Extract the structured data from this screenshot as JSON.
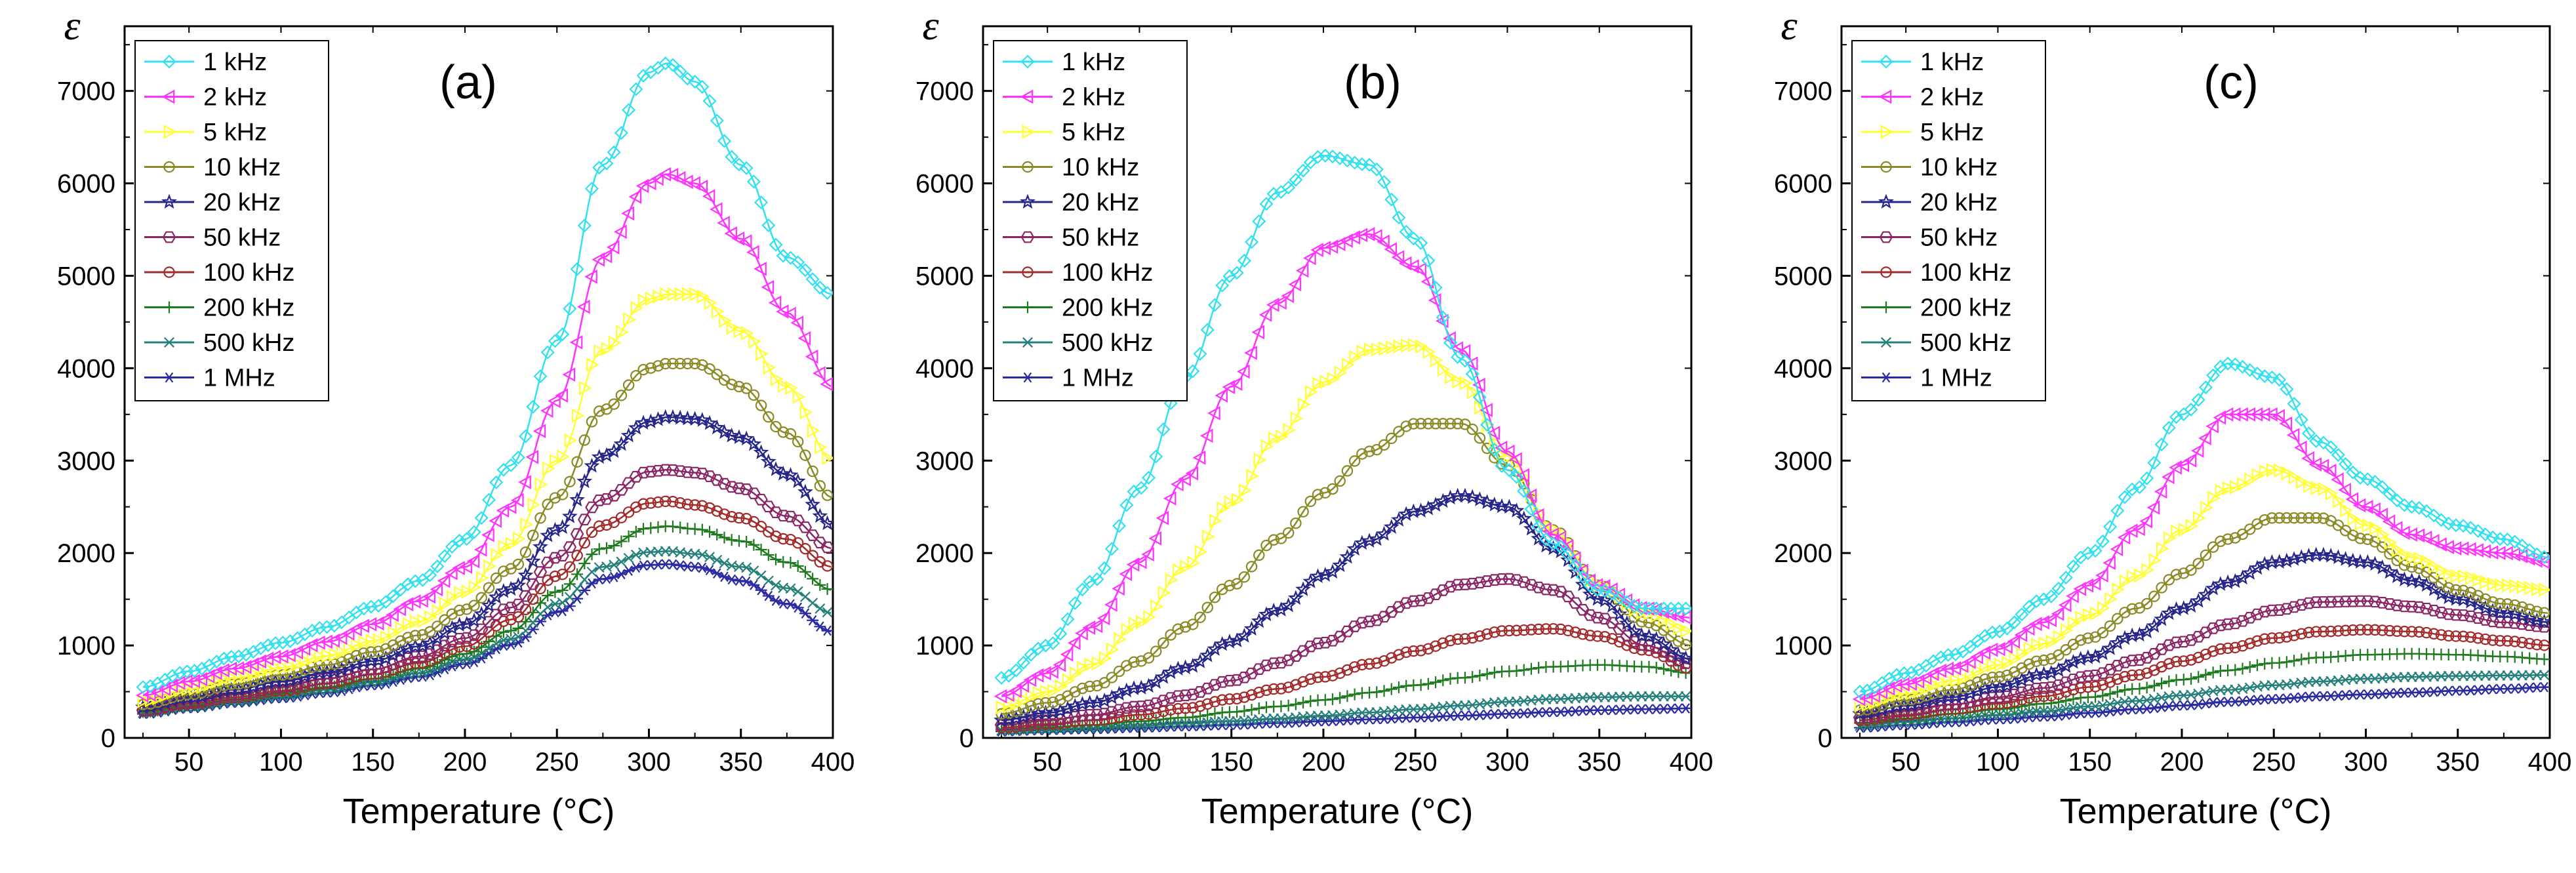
{
  "colors": {
    "1 kHz": "#33e0f0",
    "2 kHz": "#ff33ff",
    "5 kHz": "#ffff33",
    "10 kHz": "#8a8a26",
    "20 kHz": "#26268a",
    "50 kHz": "#8a2666",
    "100 kHz": "#a32a2a",
    "200 kHz": "#1f7a1f",
    "500 kHz": "#26807a",
    "1 MHz": "#2a2aa3"
  },
  "markers": {
    "1 kHz": "diamond",
    "2 kHz": "triangle-left",
    "5 kHz": "triangle-right",
    "10 kHz": "circle",
    "20 kHz": "star",
    "50 kHz": "hexagon",
    "100 kHz": "circle",
    "200 kHz": "plus",
    "500 kHz": "cross",
    "1 MHz": "asterisk"
  },
  "chart_data": [
    {
      "type": "line",
      "panel_label": "(a)",
      "ylabel": "ε",
      "xlabel": "Temperature (°C)",
      "xlim": [
        15,
        400
      ],
      "ylim": [
        0,
        7700
      ],
      "xticks": [
        50,
        100,
        150,
        200,
        250,
        300,
        350,
        400
      ],
      "yticks": [
        0,
        1000,
        2000,
        3000,
        4000,
        5000,
        6000,
        7000
      ],
      "legend": "top-left",
      "x": [
        25,
        50,
        75,
        100,
        125,
        150,
        175,
        200,
        225,
        250,
        275,
        300,
        310,
        325,
        350,
        375,
        400
      ],
      "series": [
        {
          "name": "1 kHz",
          "values": [
            550,
            720,
            880,
            1030,
            1200,
            1420,
            1700,
            2150,
            2950,
            4300,
            6200,
            7200,
            7300,
            7100,
            6200,
            5200,
            4800
          ]
        },
        {
          "name": "2 kHz",
          "values": [
            460,
            610,
            750,
            880,
            1040,
            1230,
            1480,
            1850,
            2500,
            3650,
            5200,
            6000,
            6100,
            6000,
            5400,
            4600,
            3800
          ]
        },
        {
          "name": "5 kHz",
          "values": [
            400,
            530,
            650,
            760,
            890,
            1050,
            1260,
            1580,
            2100,
            3000,
            4200,
            4750,
            4800,
            4800,
            4400,
            3800,
            3000
          ]
        },
        {
          "name": "10 kHz",
          "values": [
            360,
            470,
            580,
            680,
            790,
            930,
            1110,
            1390,
            1830,
            2600,
            3550,
            4000,
            4050,
            4050,
            3800,
            3300,
            2600
          ]
        },
        {
          "name": "20 kHz",
          "values": [
            330,
            430,
            520,
            610,
            710,
            830,
            990,
            1230,
            1610,
            2250,
            3050,
            3420,
            3470,
            3450,
            3250,
            2850,
            2300
          ]
        },
        {
          "name": "50 kHz",
          "values": [
            300,
            390,
            470,
            550,
            640,
            740,
            880,
            1080,
            1410,
            1950,
            2580,
            2880,
            2900,
            2870,
            2700,
            2400,
            2050
          ]
        },
        {
          "name": "100 kHz",
          "values": [
            290,
            370,
            440,
            510,
            590,
            690,
            810,
            990,
            1280,
            1750,
            2300,
            2540,
            2560,
            2520,
            2380,
            2150,
            1850
          ]
        },
        {
          "name": "200 kHz",
          "values": [
            280,
            350,
            420,
            480,
            550,
            640,
            750,
            910,
            1160,
            1580,
            2050,
            2270,
            2290,
            2260,
            2130,
            1900,
            1600
          ]
        },
        {
          "name": "500 kHz",
          "values": [
            270,
            330,
            390,
            450,
            520,
            600,
            700,
            850,
            1070,
            1450,
            1850,
            2010,
            2020,
            1990,
            1850,
            1620,
            1350
          ]
        },
        {
          "name": "1 MHz",
          "values": [
            260,
            320,
            380,
            430,
            490,
            570,
            660,
            800,
            1010,
            1360,
            1720,
            1870,
            1880,
            1850,
            1700,
            1450,
            1150
          ]
        }
      ]
    },
    {
      "type": "line",
      "panel_label": "(b)",
      "ylabel": "ε",
      "xlabel": "Temperature (°C)",
      "xlim": [
        15,
        400
      ],
      "ylim": [
        0,
        7700
      ],
      "xticks": [
        50,
        100,
        150,
        200,
        250,
        300,
        350,
        400
      ],
      "yticks": [
        0,
        1000,
        2000,
        3000,
        4000,
        5000,
        6000,
        7000
      ],
      "legend": "top-left",
      "x": [
        25,
        50,
        75,
        100,
        125,
        150,
        175,
        200,
        225,
        250,
        275,
        300,
        325,
        350,
        375,
        400
      ],
      "series": [
        {
          "name": "1 kHz",
          "values": [
            650,
            1000,
            1700,
            2700,
            3900,
            5000,
            5900,
            6300,
            6200,
            5400,
            4100,
            2900,
            2100,
            1600,
            1400,
            1400
          ]
        },
        {
          "name": "2 kHz",
          "values": [
            450,
            700,
            1200,
            1900,
            2800,
            3800,
            4700,
            5300,
            5450,
            5100,
            4200,
            3100,
            2200,
            1650,
            1400,
            1300
          ]
        },
        {
          "name": "5 kHz",
          "values": [
            330,
            500,
            800,
            1250,
            1850,
            2550,
            3250,
            3850,
            4200,
            4250,
            3850,
            3050,
            2250,
            1650,
            1350,
            1150
          ]
        },
        {
          "name": "10 kHz",
          "values": [
            260,
            380,
            560,
            830,
            1200,
            1650,
            2150,
            2650,
            3100,
            3400,
            3400,
            2950,
            2250,
            1650,
            1250,
            1000
          ]
        },
        {
          "name": "20 kHz",
          "values": [
            190,
            270,
            380,
            540,
            760,
            1040,
            1380,
            1760,
            2130,
            2450,
            2620,
            2500,
            2050,
            1500,
            1100,
            850
          ]
        },
        {
          "name": "50 kHz",
          "values": [
            140,
            190,
            250,
            340,
            460,
            620,
            810,
            1030,
            1260,
            1480,
            1660,
            1720,
            1600,
            1300,
            1000,
            800
          ]
        },
        {
          "name": "100 kHz",
          "values": [
            110,
            150,
            190,
            250,
            320,
            420,
            530,
            660,
            800,
            940,
            1070,
            1160,
            1180,
            1100,
            950,
            750
          ]
        },
        {
          "name": "200 kHz",
          "values": [
            90,
            115,
            140,
            180,
            220,
            280,
            340,
            410,
            490,
            570,
            650,
            720,
            770,
            790,
            770,
            700
          ]
        },
        {
          "name": "500 kHz",
          "values": [
            80,
            95,
            110,
            130,
            155,
            180,
            210,
            240,
            275,
            310,
            350,
            390,
            420,
            440,
            450,
            450
          ]
        },
        {
          "name": "1 MHz",
          "values": [
            70,
            85,
            95,
            110,
            125,
            140,
            160,
            180,
            200,
            220,
            240,
            260,
            280,
            300,
            310,
            320
          ]
        }
      ]
    },
    {
      "type": "line",
      "panel_label": "(c)",
      "ylabel": "ε",
      "xlabel": "Temperature (°C)",
      "xlim": [
        15,
        400
      ],
      "ylim": [
        0,
        7700
      ],
      "xticks": [
        50,
        100,
        150,
        200,
        250,
        300,
        350,
        400
      ],
      "yticks": [
        0,
        1000,
        2000,
        3000,
        4000,
        5000,
        6000,
        7000
      ],
      "legend": "top-left",
      "x": [
        25,
        50,
        75,
        100,
        125,
        150,
        175,
        200,
        225,
        250,
        275,
        300,
        325,
        350,
        375,
        400
      ],
      "series": [
        {
          "name": "1 kHz",
          "values": [
            500,
            700,
            900,
            1150,
            1500,
            2000,
            2700,
            3500,
            4050,
            3900,
            3200,
            2800,
            2500,
            2300,
            2150,
            1950
          ]
        },
        {
          "name": "2 kHz",
          "values": [
            420,
            580,
            750,
            960,
            1250,
            1650,
            2250,
            2950,
            3500,
            3500,
            2950,
            2500,
            2200,
            2050,
            2000,
            1900
          ]
        },
        {
          "name": "5 kHz",
          "values": [
            350,
            480,
            620,
            790,
            1020,
            1330,
            1750,
            2250,
            2700,
            2900,
            2700,
            2300,
            1950,
            1750,
            1650,
            1600
          ]
        },
        {
          "name": "10 kHz",
          "values": [
            300,
            410,
            520,
            660,
            840,
            1080,
            1400,
            1780,
            2150,
            2380,
            2380,
            2150,
            1850,
            1600,
            1450,
            1350
          ]
        },
        {
          "name": "20 kHz",
          "values": [
            260,
            350,
            440,
            550,
            690,
            870,
            1110,
            1400,
            1680,
            1900,
            1980,
            1900,
            1700,
            1500,
            1350,
            1250
          ]
        },
        {
          "name": "50 kHz",
          "values": [
            220,
            290,
            360,
            440,
            540,
            670,
            840,
            1040,
            1230,
            1380,
            1470,
            1480,
            1420,
            1330,
            1250,
            1200
          ]
        },
        {
          "name": "100 kHz",
          "values": [
            190,
            250,
            310,
            370,
            450,
            550,
            680,
            830,
            970,
            1080,
            1150,
            1170,
            1150,
            1100,
            1050,
            1000
          ]
        },
        {
          "name": "200 kHz",
          "values": [
            160,
            210,
            260,
            310,
            370,
            440,
            530,
            630,
            730,
            810,
            870,
            900,
            910,
            900,
            880,
            850
          ]
        },
        {
          "name": "500 kHz",
          "values": [
            130,
            170,
            210,
            250,
            290,
            340,
            400,
            460,
            520,
            570,
            610,
            640,
            660,
            670,
            675,
            680
          ]
        },
        {
          "name": "1 MHz",
          "values": [
            110,
            140,
            170,
            200,
            230,
            270,
            310,
            350,
            390,
            420,
            450,
            470,
            490,
            510,
            530,
            550
          ]
        }
      ]
    }
  ]
}
